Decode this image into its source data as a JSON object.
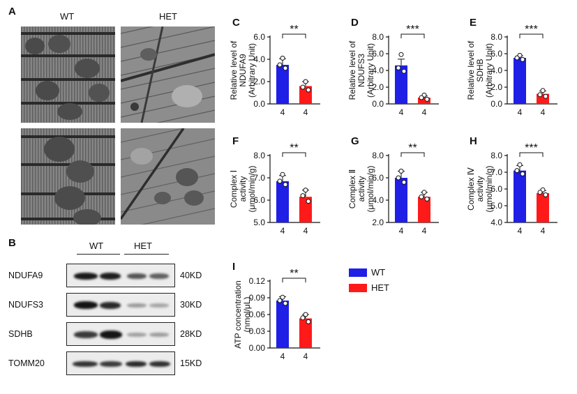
{
  "colors": {
    "wt": "#1f1fe6",
    "het": "#ff1a1a"
  },
  "panel_a": {
    "letter": "A",
    "wt_label": "WT",
    "het_label": "HET"
  },
  "panel_b": {
    "letter": "B",
    "group_wt": "WT",
    "group_het": "HET",
    "rows": [
      {
        "name": "NDUFA9",
        "kd": "40KD"
      },
      {
        "name": "NDUFS3",
        "kd": "30KD"
      },
      {
        "name": "SDHB",
        "kd": "28KD"
      },
      {
        "name": "TOMM20",
        "kd": "15KD"
      }
    ]
  },
  "legend": {
    "wt": "WT",
    "het": "HET"
  },
  "chart_data": [
    {
      "id": "C",
      "type": "bar",
      "letter": "C",
      "ylabel": [
        "Relative level of",
        "NDUFA9",
        "(Arbitrary Unit)"
      ],
      "ylim": [
        0,
        6
      ],
      "ticks": [
        0,
        2,
        4,
        6
      ],
      "tick_labels": [
        "0.0",
        "2.0",
        "4.0",
        "6.0"
      ],
      "categories": [
        "4",
        "4"
      ],
      "values": [
        3.5,
        1.6
      ],
      "errors": [
        0.55,
        0.4
      ],
      "points": [
        [
          4.1,
          3.5,
          3.2
        ],
        [
          2.0,
          1.5,
          1.25
        ]
      ],
      "sig": "**"
    },
    {
      "id": "D",
      "type": "bar",
      "letter": "D",
      "ylabel": [
        "Relative level of",
        "NDUFS3",
        "(Arbitrary Unit)"
      ],
      "ylim": [
        0,
        8
      ],
      "ticks": [
        0,
        2,
        4,
        6,
        8
      ],
      "tick_labels": [
        "0.0",
        "2.0",
        "4.0",
        "6.0",
        "8.0"
      ],
      "categories": [
        "4",
        "4"
      ],
      "values": [
        4.6,
        0.75
      ],
      "errors": [
        0.75,
        0.2
      ],
      "points": [
        [
          5.9,
          4.3,
          3.9
        ],
        [
          1.05,
          0.75,
          0.55
        ]
      ],
      "sig": "***"
    },
    {
      "id": "E",
      "type": "bar",
      "letter": "E",
      "ylabel": [
        "Relative level of",
        "SDHB",
        "(Arbitrary Unit)"
      ],
      "ylim": [
        0,
        8
      ],
      "ticks": [
        0,
        2,
        4,
        6,
        8
      ],
      "tick_labels": [
        "0.0",
        "2.0",
        "4.0",
        "6.0",
        "8.0"
      ],
      "categories": [
        "4",
        "4"
      ],
      "values": [
        5.5,
        1.2
      ],
      "errors": [
        0.25,
        0.35
      ],
      "points": [
        [
          5.8,
          5.5,
          5.3
        ],
        [
          1.6,
          1.1,
          0.9
        ]
      ],
      "sig": "***"
    },
    {
      "id": "F",
      "type": "bar",
      "letter": "F",
      "ylabel": [
        "Complex Ⅰ",
        "activity",
        "(μmol/min/g)"
      ],
      "ylim": [
        5,
        8
      ],
      "ticks": [
        5,
        6,
        7,
        8
      ],
      "tick_labels": [
        "5.0",
        "6.0",
        "7.0",
        "8.0"
      ],
      "categories": [
        "4",
        "4"
      ],
      "values": [
        6.85,
        6.15
      ],
      "errors": [
        0.25,
        0.3
      ],
      "points": [
        [
          7.15,
          6.85,
          6.7
        ],
        [
          6.45,
          6.2,
          5.95
        ]
      ],
      "sig": "**"
    },
    {
      "id": "G",
      "type": "bar",
      "letter": "G",
      "ylabel": [
        "Complex Ⅱ",
        "activity",
        "(μmol/min/g)"
      ],
      "ylim": [
        2,
        8
      ],
      "ticks": [
        2,
        4,
        6,
        8
      ],
      "tick_labels": [
        "2.0",
        "4.0",
        "6.0",
        "8.0"
      ],
      "categories": [
        "4",
        "4"
      ],
      "values": [
        6.0,
        4.3
      ],
      "errors": [
        0.6,
        0.4
      ],
      "points": [
        [
          6.6,
          6.0,
          5.6
        ],
        [
          4.7,
          4.3,
          4.1
        ]
      ],
      "sig": "**"
    },
    {
      "id": "H",
      "type": "bar",
      "letter": "H",
      "ylabel": [
        "Complex Ⅳ",
        "activity",
        "(μmol/min/g)"
      ],
      "ylim": [
        4,
        8
      ],
      "ticks": [
        4,
        5,
        6,
        7,
        8
      ],
      "tick_labels": [
        "4.0",
        "5.0",
        "6.0",
        "7.0",
        "8.0"
      ],
      "categories": [
        "4",
        "4"
      ],
      "values": [
        7.1,
        5.75
      ],
      "errors": [
        0.3,
        0.15
      ],
      "points": [
        [
          7.45,
          7.1,
          6.9
        ],
        [
          5.95,
          5.8,
          5.65
        ]
      ],
      "sig": "***"
    },
    {
      "id": "I",
      "type": "bar",
      "letter": "I",
      "ylabel": [
        "ATP concentration",
        "(nmol/μL)"
      ],
      "ylim": [
        0,
        0.12
      ],
      "ticks": [
        0,
        0.03,
        0.06,
        0.09,
        0.12
      ],
      "tick_labels": [
        "0.00",
        "0.03",
        "0.06",
        "0.09",
        "0.12"
      ],
      "categories": [
        "4",
        "4"
      ],
      "values": [
        0.085,
        0.053
      ],
      "errors": [
        0.007,
        0.007
      ],
      "points": [
        [
          0.091,
          0.085,
          0.08
        ],
        [
          0.06,
          0.054,
          0.047
        ]
      ],
      "sig": "**"
    }
  ]
}
